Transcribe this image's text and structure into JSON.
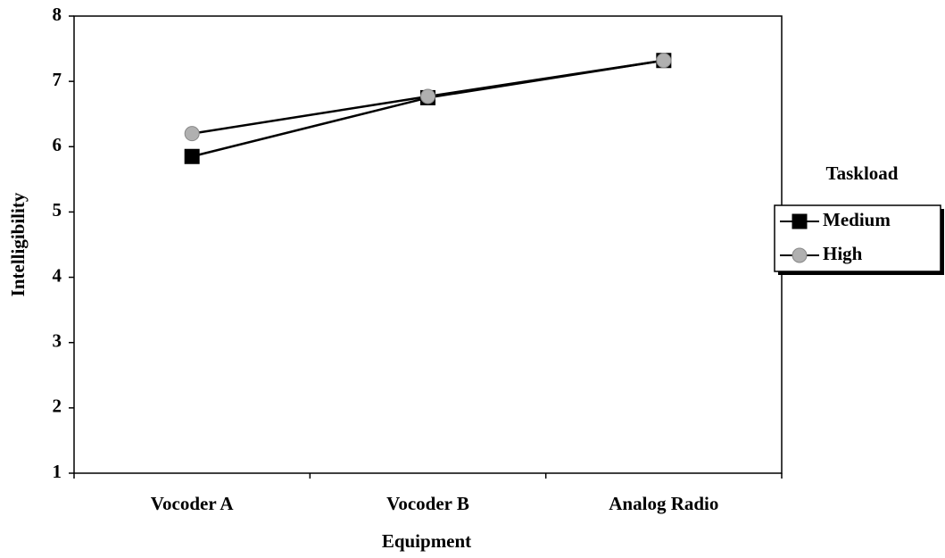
{
  "chart_data": {
    "type": "line",
    "x_label": "Equipment",
    "y_label": "Intelligibility",
    "categories": [
      "Vocoder A",
      "Vocoder B",
      "Analog Radio"
    ],
    "series": [
      {
        "name": "Medium",
        "color": "#000000",
        "marker": "square",
        "values": [
          5.85,
          6.75,
          7.32
        ]
      },
      {
        "name": "High",
        "color": "#b0b0b0",
        "marker": "circle",
        "values": [
          6.2,
          6.77,
          7.32
        ]
      }
    ],
    "ylim": [
      1,
      8
    ],
    "yticks": [
      1,
      2,
      3,
      4,
      5,
      6,
      7,
      8
    ],
    "grid": false,
    "legend_title": "Taskload",
    "legend": "right"
  }
}
